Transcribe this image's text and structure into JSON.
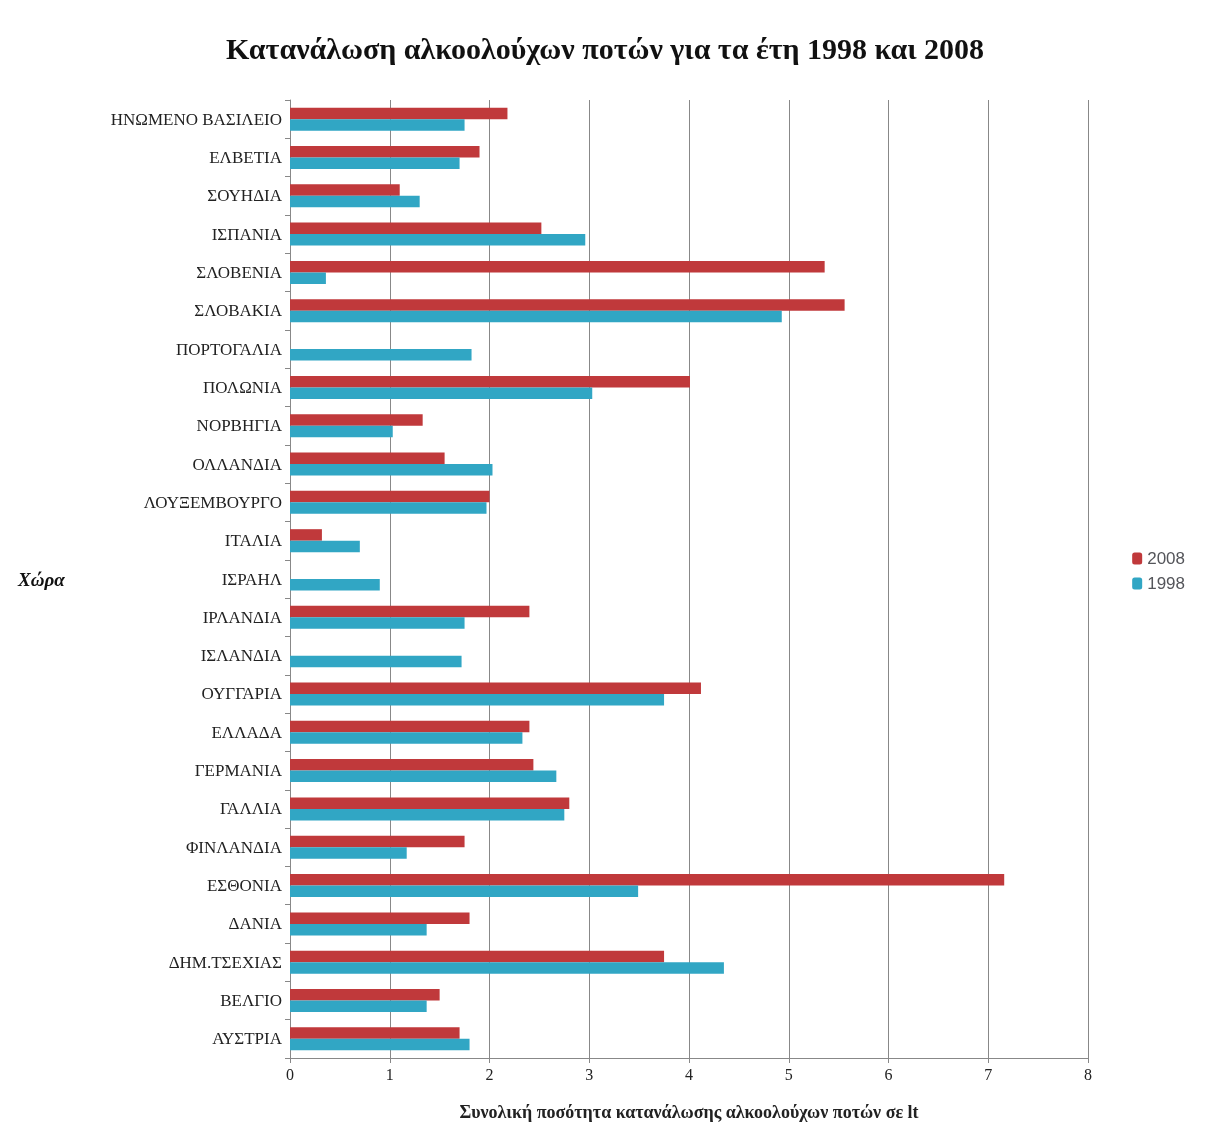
{
  "chart_data": {
    "type": "bar",
    "orientation": "horizontal",
    "title": "Κατανάλωση αλκοολούχων ποτών για τα έτη 1998 και 2008",
    "xlabel": "Συνολική ποσότητα κατανάλωσης αλκοολούχων ποτών σε lt",
    "ylabel": "Χώρα",
    "categories": [
      "ΗΝΩΜΕΝΟ ΒΑΣΙΛΕΙΟ",
      "ΕΛΒΕΤΙΑ",
      "ΣΟΥΗΔΙΑ",
      "ΙΣΠΑΝΙΑ",
      "ΣΛΟΒΕΝΙΑ",
      "ΣΛΟΒΑΚΙΑ",
      "ΠΟΡΤΟΓΑΛΙΑ",
      "ΠΟΛΩΝΙΑ",
      "ΝΟΡΒΗΓΙΑ",
      "ΟΛΛΑΝΔΙΑ",
      "ΛΟΥΞΕΜΒΟΥΡΓΟ",
      "ΙΤΑΛΙΑ",
      "ΙΣΡΑΗΛ",
      "ΙΡΛΑΝΔΙΑ",
      "ΙΣΛΑΝΔΙΑ",
      "ΟΥΓΓΑΡΙΑ",
      "ΕΛΛΑΔΑ",
      "ΓΕΡΜΑΝΙΑ",
      "ΓΑΛΛΙΑ",
      "ΦΙΝΛΑΝΔΙΑ",
      "ΕΣΘΟΝΙΑ",
      "ΔΑΝΙΑ",
      "ΔΗΜ.ΤΣΕΧΙΑΣ",
      "ΒΕΛΓΙΟ",
      "ΑΥΣΤΡΙΑ"
    ],
    "series": [
      {
        "name": "2008",
        "color": "#c0393b",
        "values": [
          2.18,
          1.9,
          1.1,
          2.52,
          5.36,
          5.56,
          null,
          4.01,
          1.33,
          1.55,
          2.0,
          0.32,
          null,
          2.4,
          null,
          4.12,
          2.4,
          2.44,
          2.8,
          1.75,
          7.16,
          1.8,
          3.75,
          1.5,
          1.7
        ]
      },
      {
        "name": "1998",
        "color": "#31a6c4",
        "values": [
          1.75,
          1.7,
          1.3,
          2.96,
          0.36,
          4.93,
          1.82,
          3.03,
          1.03,
          2.03,
          1.97,
          0.7,
          0.9,
          1.75,
          1.72,
          3.75,
          2.33,
          2.67,
          2.75,
          1.17,
          3.49,
          1.37,
          4.35,
          1.37,
          1.8
        ]
      }
    ],
    "xlim": [
      0,
      8
    ],
    "xticks": [
      0,
      1,
      2,
      3,
      4,
      5,
      6,
      7,
      8
    ],
    "grid": "x",
    "legend": "right"
  }
}
